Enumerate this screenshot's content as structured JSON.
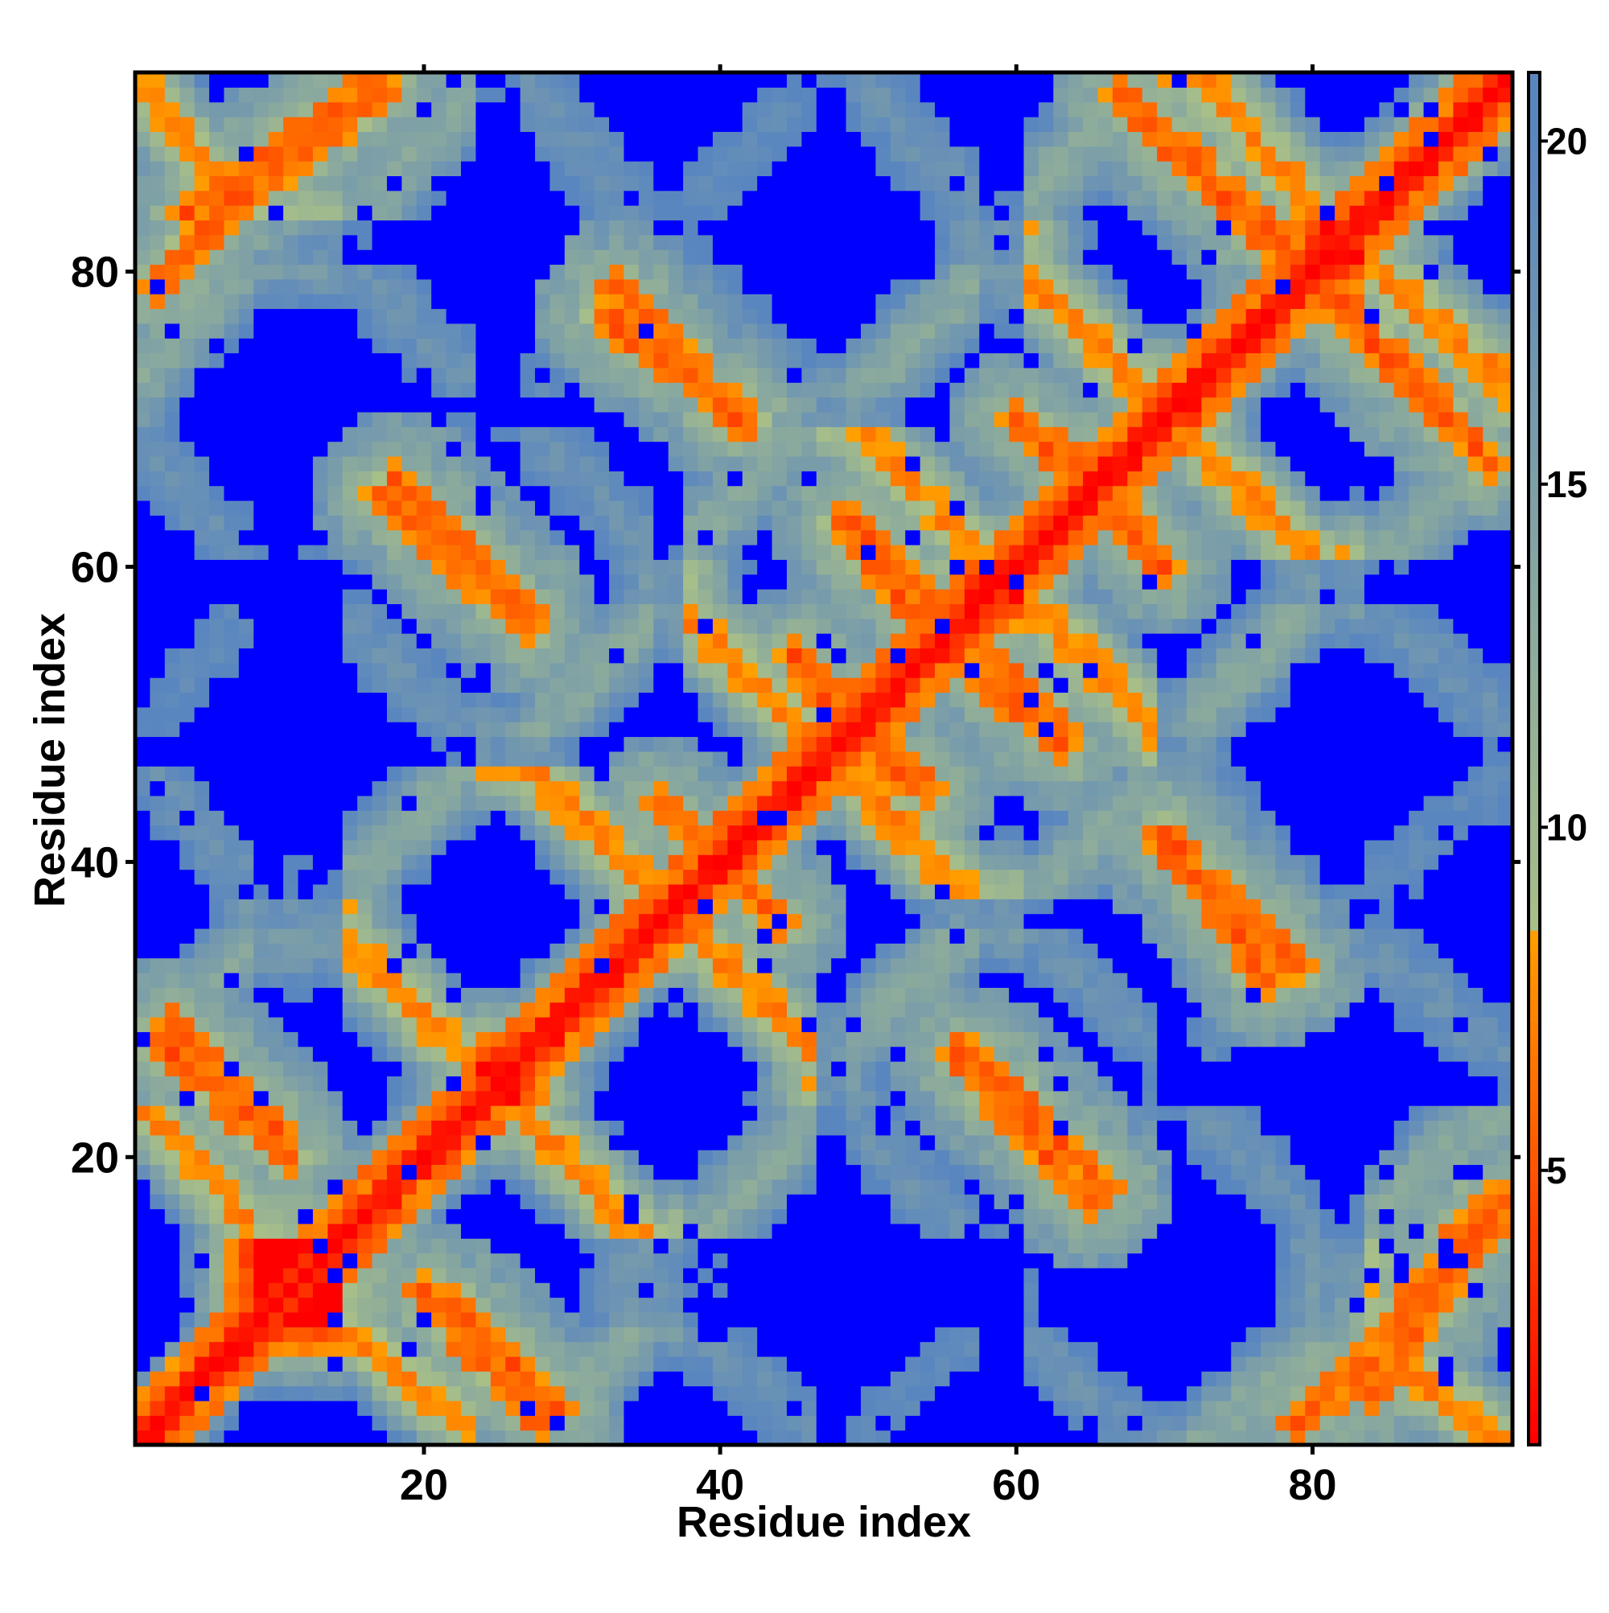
{
  "chart_data": {
    "type": "heatmap",
    "title": "",
    "xlabel": "Residue index",
    "ylabel": "Residue index",
    "n_residues": 93,
    "xlim": [
      1,
      93
    ],
    "ylim": [
      1,
      93
    ],
    "xticks": [
      20,
      40,
      60,
      80
    ],
    "yticks": [
      20,
      40,
      60,
      80
    ],
    "colorbar": {
      "ticks": [
        5,
        10,
        15,
        20
      ],
      "range": [
        1,
        21
      ],
      "cutoff": 8.5,
      "colors": {
        "below_cutoff": [
          "#ff0000",
          "#ffa000"
        ],
        "above_cutoff": [
          "#a8bf88",
          "#5a86c0"
        ]
      },
      "saturation_color": "#0000ff"
    },
    "description_values": {
      "diagonal_value": 1,
      "contact_value_range": [
        4,
        8
      ],
      "saturated_value": 21
    },
    "beta_strands": [
      {
        "start": 1,
        "end": 8
      },
      {
        "start": 15,
        "end": 23
      },
      {
        "start": 27,
        "end": 35
      },
      {
        "start": 38,
        "end": 46
      },
      {
        "start": 49,
        "end": 57
      },
      {
        "start": 61,
        "end": 69
      },
      {
        "start": 72,
        "end": 80
      },
      {
        "start": 84,
        "end": 93
      }
    ],
    "contact_bands": [
      {
        "x0": 2,
        "y0": 28,
        "x1": 11,
        "y1": 20
      },
      {
        "x0": 22,
        "y0": 10,
        "x1": 29,
        "y1": 3
      },
      {
        "x0": 4,
        "y0": 84,
        "x1": 17,
        "y1": 93
      },
      {
        "x0": 18,
        "y0": 66,
        "x1": 27,
        "y1": 57
      },
      {
        "x0": 33,
        "y0": 79,
        "x1": 41,
        "y1": 70
      },
      {
        "x0": 36,
        "y0": 44,
        "x1": 44,
        "y1": 36
      },
      {
        "x0": 46,
        "y0": 52,
        "x1": 54,
        "y1": 45
      },
      {
        "x0": 49,
        "y0": 63,
        "x1": 56,
        "y1": 56
      },
      {
        "x0": 56,
        "y0": 27,
        "x1": 65,
        "y1": 17
      },
      {
        "x0": 55,
        "y0": 55,
        "x1": 63,
        "y1": 48
      },
      {
        "x0": 63,
        "y0": 68,
        "x1": 70,
        "y1": 60
      },
      {
        "x0": 70,
        "y0": 42,
        "x1": 77,
        "y1": 32
      },
      {
        "x0": 67,
        "y0": 92,
        "x1": 78,
        "y1": 82
      },
      {
        "x0": 78,
        "y0": 81,
        "x1": 91,
        "y1": 68
      },
      {
        "x0": 79,
        "y0": 2,
        "x1": 86,
        "y1": 8
      },
      {
        "x0": 85,
        "y0": 8,
        "x1": 92,
        "y1": 17
      }
    ]
  }
}
